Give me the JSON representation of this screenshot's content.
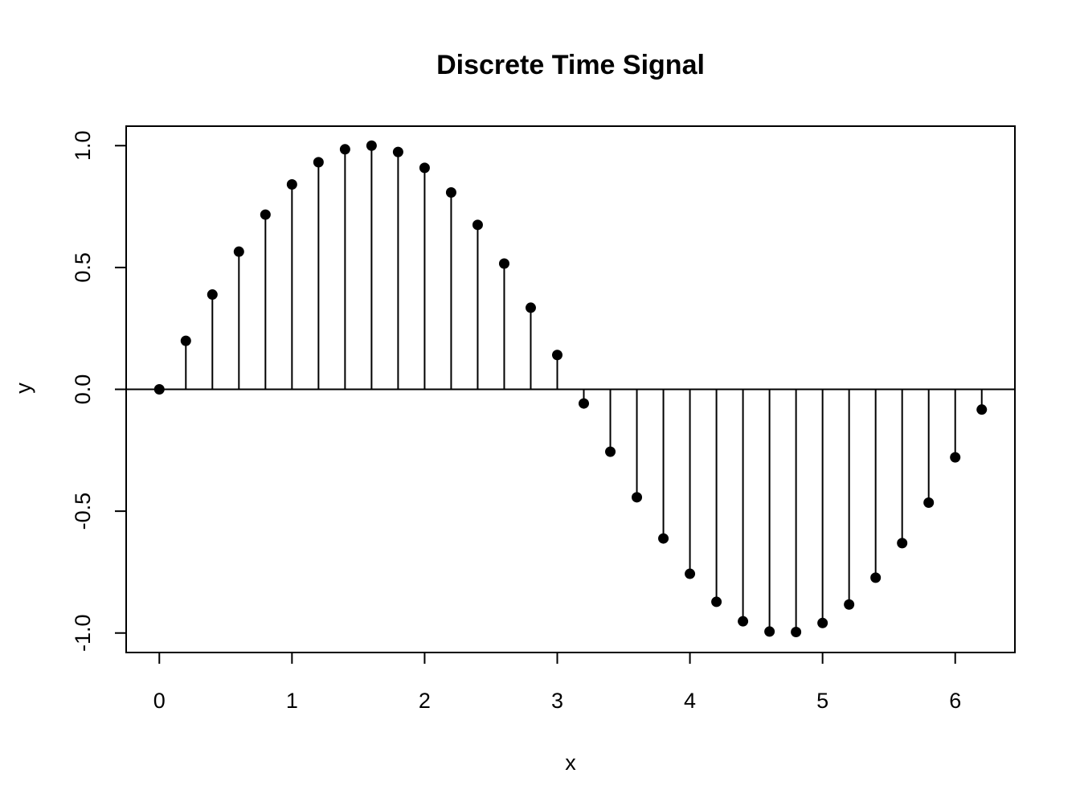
{
  "chart_data": {
    "type": "scatter",
    "style": "stem",
    "title": "Discrete Time Signal",
    "xlabel": "x",
    "ylabel": "y",
    "xlim": [
      -0.25,
      6.45
    ],
    "ylim": [
      -1.08,
      1.08
    ],
    "xticks": [
      0,
      1,
      2,
      3,
      4,
      5,
      6
    ],
    "xtick_labels": [
      "0",
      "1",
      "2",
      "3",
      "4",
      "5",
      "6"
    ],
    "yticks": [
      -1.0,
      -0.5,
      0.0,
      0.5,
      1.0
    ],
    "ytick_labels": [
      "-1.0",
      "-0.5",
      "0.0",
      "0.5",
      "1.0"
    ],
    "baseline": 0,
    "grid": false,
    "legend": "none",
    "color": "#000000",
    "x": [
      0,
      0.2,
      0.4,
      0.6,
      0.8,
      1.0,
      1.2,
      1.4,
      1.6,
      1.8,
      2.0,
      2.2,
      2.4,
      2.6,
      2.8,
      3.0,
      3.2,
      3.4,
      3.6,
      3.8,
      4.0,
      4.2,
      4.4,
      4.6,
      4.8,
      5.0,
      5.2,
      5.4,
      5.6,
      5.8,
      6.0,
      6.2
    ],
    "y": [
      0.0,
      0.199,
      0.389,
      0.565,
      0.717,
      0.841,
      0.932,
      0.985,
      1.0,
      0.974,
      0.909,
      0.808,
      0.675,
      0.516,
      0.335,
      0.141,
      -0.058,
      -0.256,
      -0.443,
      -0.612,
      -0.757,
      -0.872,
      -0.952,
      -0.994,
      -0.996,
      -0.959,
      -0.883,
      -0.773,
      -0.631,
      -0.465,
      -0.279,
      -0.083
    ]
  }
}
